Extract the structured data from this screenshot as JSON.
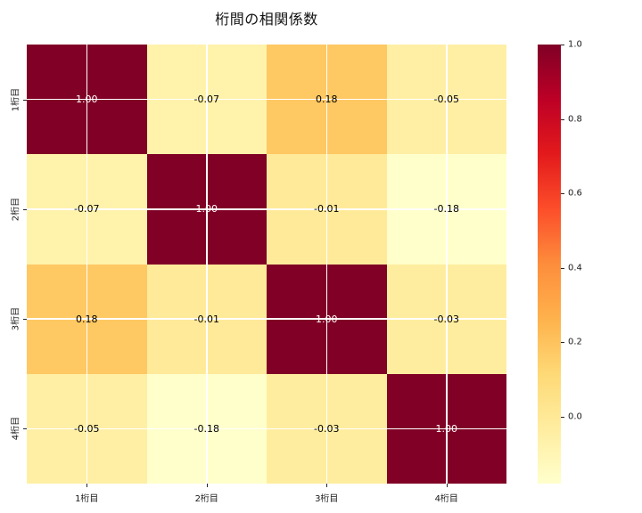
{
  "title": "桁間の相関係数",
  "chart_data": {
    "type": "heatmap",
    "title": "桁間の相関係数",
    "xlabel": "",
    "ylabel": "",
    "x_tick_labels": [
      "1桁目",
      "2桁目",
      "3桁目",
      "4桁目"
    ],
    "y_tick_labels": [
      "1桁目",
      "2桁目",
      "3桁目",
      "4桁目"
    ],
    "matrix": [
      [
        1.0,
        -0.07,
        0.18,
        -0.05
      ],
      [
        -0.07,
        1.0,
        -0.01,
        -0.18
      ],
      [
        0.18,
        -0.01,
        1.0,
        -0.03
      ],
      [
        -0.05,
        -0.18,
        -0.03,
        1.0
      ]
    ],
    "cell_labels": [
      [
        "1.00",
        "-0.07",
        "0.18",
        "-0.05"
      ],
      [
        "-0.07",
        "1.00",
        "-0.01",
        "-0.18"
      ],
      [
        "0.18",
        "-0.01",
        "1.00",
        "-0.03"
      ],
      [
        "-0.05",
        "-0.18",
        "-0.03",
        "1.00"
      ]
    ],
    "cell_colors": [
      [
        "#800026",
        "#fff2ab",
        "#fec863",
        "#ffefa5"
      ],
      [
        "#fff2ab",
        "#800026",
        "#ffea9a",
        "#ffffcc"
      ],
      [
        "#fec863",
        "#ffea9a",
        "#800026",
        "#ffed9f"
      ],
      [
        "#ffefa5",
        "#ffffcc",
        "#ffed9f",
        "#800026"
      ]
    ],
    "cell_text_colors": [
      [
        "#ffffff",
        "#000000",
        "#000000",
        "#000000"
      ],
      [
        "#000000",
        "#ffffff",
        "#000000",
        "#000000"
      ],
      [
        "#000000",
        "#000000",
        "#ffffff",
        "#000000"
      ],
      [
        "#000000",
        "#000000",
        "#000000",
        "#ffffff"
      ]
    ],
    "grid": true,
    "grid_color": "#ffffff",
    "colormap": "YlOrRd",
    "colorbar": {
      "vmin": -0.18,
      "vmax": 1.0,
      "tick_labels": [
        "1.0",
        "0.8",
        "0.6",
        "0.4",
        "0.2",
        "0.0"
      ],
      "tick_values": [
        1.0,
        0.8,
        0.6,
        0.4,
        0.2,
        0.0
      ],
      "gradient_stops": [
        {
          "pos": 0.0,
          "color": "#ffffcc"
        },
        {
          "pos": 0.125,
          "color": "#ffeda0"
        },
        {
          "pos": 0.25,
          "color": "#fed976"
        },
        {
          "pos": 0.375,
          "color": "#feb24c"
        },
        {
          "pos": 0.5,
          "color": "#fd8d3c"
        },
        {
          "pos": 0.625,
          "color": "#fc4e2a"
        },
        {
          "pos": 0.75,
          "color": "#e31a1c"
        },
        {
          "pos": 0.875,
          "color": "#bd0026"
        },
        {
          "pos": 1.0,
          "color": "#800026"
        }
      ]
    },
    "colors": {
      "background": "#ffffff",
      "tick_label": "#1a1a1a",
      "title_text": "#111111"
    }
  }
}
